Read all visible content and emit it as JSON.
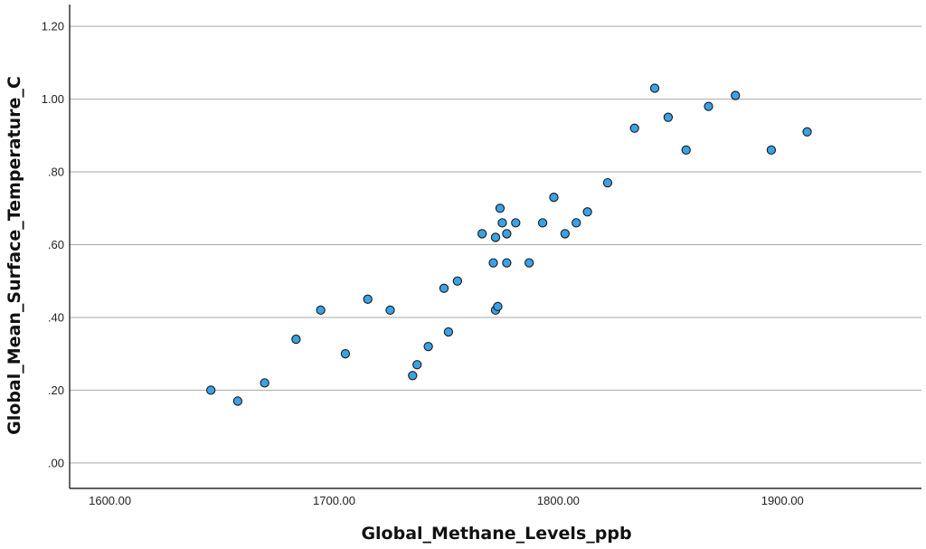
{
  "chart_data": {
    "type": "scatter",
    "title": "",
    "xlabel": "Global_Methane_Levels_ppb",
    "ylabel": "Global_Mean_Surface_Temperature_C",
    "xlim": [
      1582,
      1962
    ],
    "ylim": [
      -0.07,
      1.26
    ],
    "xticks": [
      {
        "value": 1600,
        "label": "1600.00"
      },
      {
        "value": 1700,
        "label": "1700.00"
      },
      {
        "value": 1800,
        "label": "1800.00"
      },
      {
        "value": 1900,
        "label": "1900.00"
      }
    ],
    "yticks": [
      {
        "value": 0.0,
        "label": ".00"
      },
      {
        "value": 0.2,
        "label": ".20"
      },
      {
        "value": 0.4,
        "label": ".40"
      },
      {
        "value": 0.6,
        "label": ".60"
      },
      {
        "value": 0.8,
        "label": ".80"
      },
      {
        "value": 1.0,
        "label": "1.00"
      },
      {
        "value": 1.2,
        "label": "1.20"
      }
    ],
    "grid": "horizontal",
    "marker_color": "#3aa2e6",
    "points": [
      {
        "x": 1645,
        "y": 0.2
      },
      {
        "x": 1657,
        "y": 0.17
      },
      {
        "x": 1669,
        "y": 0.22
      },
      {
        "x": 1683,
        "y": 0.34
      },
      {
        "x": 1694,
        "y": 0.42
      },
      {
        "x": 1705,
        "y": 0.3
      },
      {
        "x": 1715,
        "y": 0.45
      },
      {
        "x": 1725,
        "y": 0.42
      },
      {
        "x": 1735,
        "y": 0.24
      },
      {
        "x": 1737,
        "y": 0.27
      },
      {
        "x": 1742,
        "y": 0.32
      },
      {
        "x": 1749,
        "y": 0.48
      },
      {
        "x": 1751,
        "y": 0.36
      },
      {
        "x": 1755,
        "y": 0.5
      },
      {
        "x": 1766,
        "y": 0.63
      },
      {
        "x": 1771,
        "y": 0.55
      },
      {
        "x": 1772,
        "y": 0.42
      },
      {
        "x": 1772,
        "y": 0.62
      },
      {
        "x": 1773,
        "y": 0.43
      },
      {
        "x": 1774,
        "y": 0.7
      },
      {
        "x": 1775,
        "y": 0.66
      },
      {
        "x": 1777,
        "y": 0.55
      },
      {
        "x": 1777,
        "y": 0.63
      },
      {
        "x": 1781,
        "y": 0.66
      },
      {
        "x": 1787,
        "y": 0.55
      },
      {
        "x": 1793,
        "y": 0.66
      },
      {
        "x": 1798,
        "y": 0.73
      },
      {
        "x": 1803,
        "y": 0.63
      },
      {
        "x": 1808,
        "y": 0.66
      },
      {
        "x": 1813,
        "y": 0.69
      },
      {
        "x": 1822,
        "y": 0.77
      },
      {
        "x": 1834,
        "y": 0.92
      },
      {
        "x": 1843,
        "y": 1.03
      },
      {
        "x": 1849,
        "y": 0.95
      },
      {
        "x": 1857,
        "y": 0.86
      },
      {
        "x": 1867,
        "y": 0.98
      },
      {
        "x": 1879,
        "y": 1.01
      },
      {
        "x": 1895,
        "y": 0.86
      },
      {
        "x": 1911,
        "y": 0.91
      }
    ]
  }
}
